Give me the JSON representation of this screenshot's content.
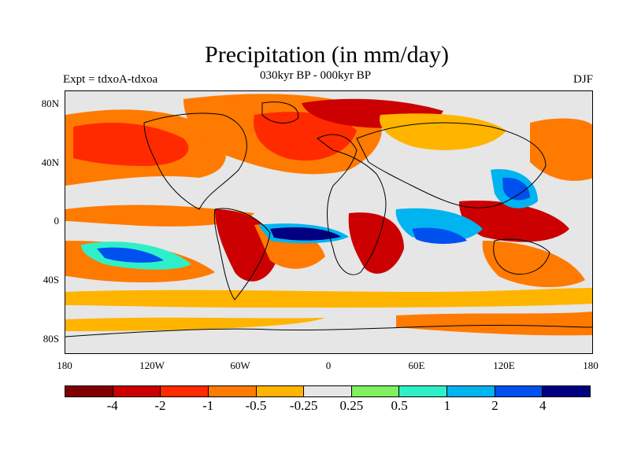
{
  "title": "Precipitation (in mm/day)",
  "subtitle": "030kyr BP - 000kyr BP",
  "experiment_label": "Expt = tdxoA-tdxoa",
  "season_label": "DJF",
  "lat_labels": [
    "80N",
    "40N",
    "0",
    "40S",
    "80S"
  ],
  "lon_labels": [
    "180",
    "120W",
    "60W",
    "0",
    "60E",
    "120E",
    "180"
  ],
  "colorbar": {
    "colors": [
      "#800000",
      "#cc0000",
      "#ff2a00",
      "#ff7a00",
      "#ffb400",
      "#e6e6e6",
      "#80f060",
      "#2ef0c8",
      "#00b4f0",
      "#0050f0",
      "#000080"
    ],
    "labels": [
      "-4",
      "-2",
      "-1",
      "-0.5",
      "-0.25",
      "0.25",
      "0.5",
      "1",
      "2",
      "4"
    ]
  },
  "colors": {
    "background": "#ffffff",
    "map_background": "#e6e6e6",
    "coastline": "#000000"
  }
}
